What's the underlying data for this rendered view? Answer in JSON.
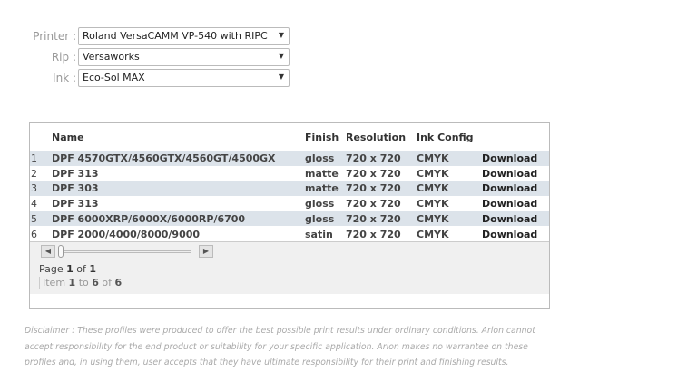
{
  "filters": [
    {
      "label": "Printer :",
      "value": "Roland VersaCAMM VP-540 with RIPC"
    },
    {
      "label": "Rip :",
      "value": "Versaworks"
    },
    {
      "label": "Ink :",
      "value": "Eco-Sol MAX"
    }
  ],
  "table": {
    "headers": [
      "",
      "Name",
      "Finish",
      "Resolution",
      "Ink Config",
      ""
    ],
    "rows": [
      [
        "1",
        "DPF 4570GTX/4560GTX/4560GT/4500GX",
        "gloss",
        "720 x 720",
        "CMYK",
        "Download"
      ],
      [
        "2",
        "DPF 313",
        "matte",
        "720 x 720",
        "CMYK",
        "Download"
      ],
      [
        "3",
        "DPF 303",
        "matte",
        "720 x 720",
        "CMYK",
        "Download"
      ],
      [
        "4",
        "DPF 313",
        "gloss",
        "720 x 720",
        "CMYK",
        "Download"
      ],
      [
        "5",
        "DPF 6000XRP/6000X/6000RP/6700",
        "gloss",
        "720 x 720",
        "CMYK",
        "Download"
      ],
      [
        "6",
        "DPF 2000/4000/8000/9000",
        "satin",
        "720 x 720",
        "CMYK",
        "Download"
      ]
    ]
  },
  "pager": {
    "page_word": "Page",
    "page": "1",
    "of_word": "of",
    "pages": "1",
    "item_word": "Item",
    "from": "1",
    "to_word": "to",
    "to": "6",
    "total": "6",
    "prev_icon": "arrow-left",
    "next_icon": "arrow-right"
  },
  "disclaimer": "Disclaimer : These profiles were produced to offer the best possible print results under ordinary conditions. Arlon cannot accept responsibility for the end product or suitability for your specific application. Arlon makes no warrantee on these profiles and, in using them, user accepts that they have ultimate responsibility for their print and finishing results."
}
